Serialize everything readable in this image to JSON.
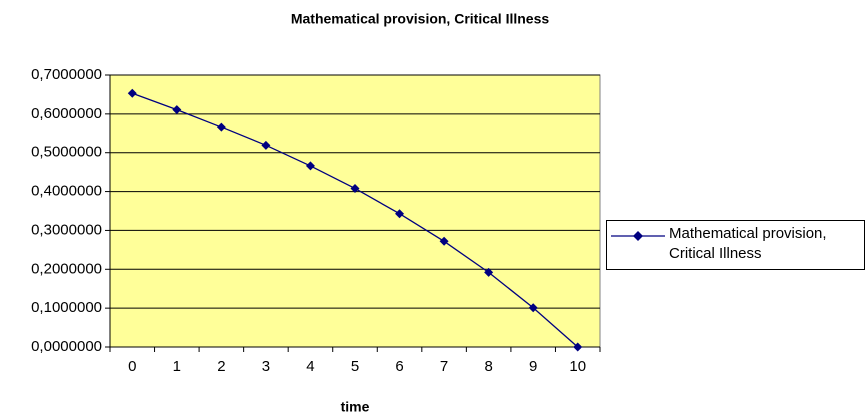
{
  "chart_data": {
    "type": "line",
    "title": "Mathematical provision, Critical Illness",
    "x_label": "time",
    "categories": [
      "0",
      "1",
      "2",
      "3",
      "4",
      "5",
      "6",
      "7",
      "8",
      "9",
      "10"
    ],
    "series": [
      {
        "name": "Mathematical provision, Critical Illness",
        "color": "#000080",
        "values": [
          0.653,
          0.611,
          0.566,
          0.519,
          0.466,
          0.408,
          0.343,
          0.272,
          0.192,
          0.101,
          0.0
        ]
      }
    ],
    "ylim": [
      0,
      0.7
    ],
    "yticks": [
      {
        "value": 0,
        "label": "0,0000000"
      },
      {
        "value": 0.1,
        "label": "0,1000000"
      },
      {
        "value": 0.2,
        "label": "0,2000000"
      },
      {
        "value": 0.3,
        "label": "0,3000000"
      },
      {
        "value": 0.4,
        "label": "0,4000000"
      },
      {
        "value": 0.5,
        "label": "0,5000000"
      },
      {
        "value": 0.6,
        "label": "0,6000000"
      },
      {
        "value": 0.7,
        "label": "0,7000000"
      }
    ],
    "grid": true,
    "plot_background": "#ffff99",
    "legend": "right"
  }
}
